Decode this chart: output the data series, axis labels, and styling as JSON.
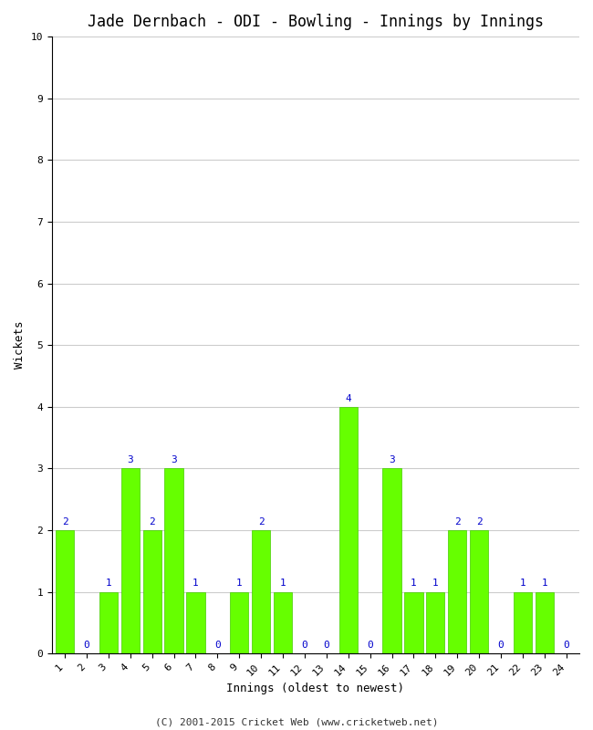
{
  "title": "Jade Dernbach - ODI - Bowling - Innings by Innings",
  "xlabel": "Innings (oldest to newest)",
  "ylabel": "Wickets",
  "categories": [
    1,
    2,
    3,
    4,
    5,
    6,
    7,
    8,
    9,
    10,
    11,
    12,
    13,
    14,
    15,
    16,
    17,
    18,
    19,
    20,
    21,
    22,
    23,
    24
  ],
  "values": [
    2,
    0,
    1,
    3,
    2,
    3,
    1,
    0,
    1,
    2,
    1,
    0,
    0,
    4,
    0,
    3,
    1,
    1,
    2,
    2,
    0,
    1,
    1,
    0
  ],
  "bar_color": "#66ff00",
  "bar_edge_color": "#44cc00",
  "label_color": "#0000cc",
  "background_color": "#ffffff",
  "grid_color": "#cccccc",
  "ylim": [
    0,
    10
  ],
  "yticks": [
    0,
    1,
    2,
    3,
    4,
    5,
    6,
    7,
    8,
    9,
    10
  ],
  "title_fontsize": 12,
  "axis_label_fontsize": 9,
  "tick_fontsize": 8,
  "label_fontsize": 8,
  "footer_text": "(C) 2001-2015 Cricket Web (www.cricketweb.net)"
}
